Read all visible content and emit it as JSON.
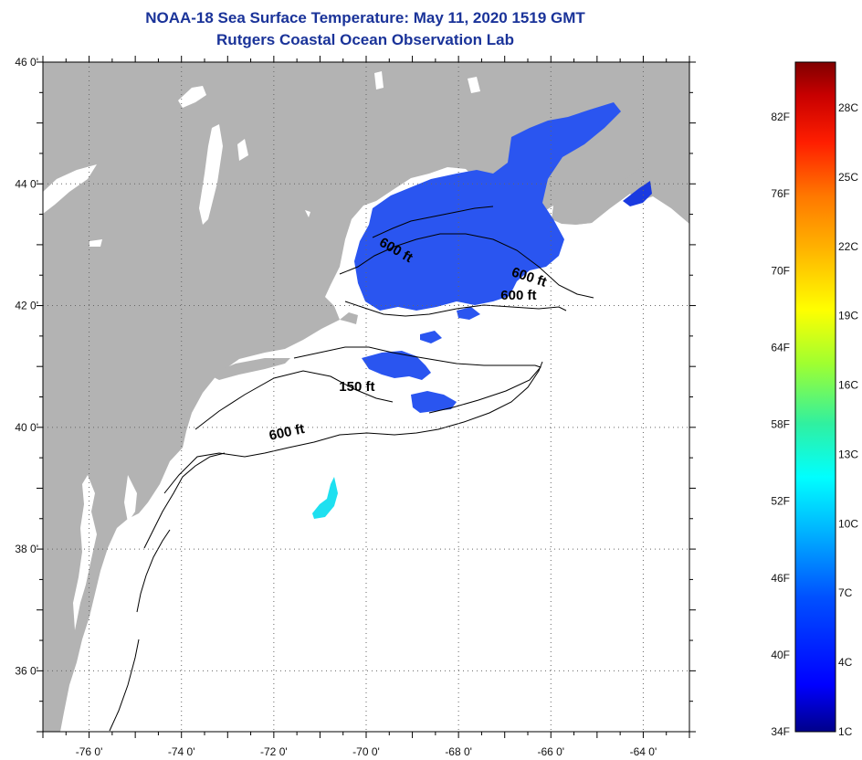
{
  "title": {
    "line1": "NOAA-18 Sea Surface Temperature:  May 11, 2020 1519 GMT",
    "line2": "Rutgers Coastal Ocean Observation Lab"
  },
  "map": {
    "lon_range": [
      -77,
      -63
    ],
    "lat_range": [
      35,
      46
    ],
    "lon_labels": [
      {
        "lon": -76,
        "text": "-76 0'"
      },
      {
        "lon": -74,
        "text": "-74 0'"
      },
      {
        "lon": -72,
        "text": "-72 0'"
      },
      {
        "lon": -70,
        "text": "-70 0'"
      },
      {
        "lon": -68,
        "text": "-68 0'"
      },
      {
        "lon": -66,
        "text": "-66 0'"
      },
      {
        "lon": -64,
        "text": "-64 0'"
      }
    ],
    "lat_labels": [
      {
        "lat": 46,
        "text": "46 0'"
      },
      {
        "lat": 44,
        "text": "44 0'"
      },
      {
        "lat": 42,
        "text": "42 0'"
      },
      {
        "lat": 40,
        "text": "40 0'"
      },
      {
        "lat": 38,
        "text": "38 0'"
      },
      {
        "lat": 36,
        "text": "36 0'"
      }
    ],
    "contour_labels": [
      {
        "text": "600 ft",
        "lon": -69.4,
        "lat": 42.85,
        "rotate": 30
      },
      {
        "text": "600 ft",
        "lon": -66.5,
        "lat": 42.4,
        "rotate": 18
      },
      {
        "text": "600 ft",
        "lon": -66.7,
        "lat": 42.1,
        "rotate": 0
      },
      {
        "text": "150 ft",
        "lon": -70.2,
        "lat": 40.6,
        "rotate": 0
      },
      {
        "text": "600 ft",
        "lon": -71.7,
        "lat": 39.85,
        "rotate": -12
      }
    ],
    "colors": {
      "land": "#b3b3b3",
      "ocean_nodata": "#ffffff",
      "sst_cold": "#2a55f0",
      "sst_deep": "#1a3ae0",
      "sst_warm_patch": "#1ee0f0",
      "grid": "#555555"
    }
  },
  "colorbar": {
    "fahrenheit_labels": [
      "82F",
      "76F",
      "70F",
      "64F",
      "58F",
      "52F",
      "46F",
      "40F",
      "34F"
    ],
    "celsius_labels": [
      "28C",
      "25C",
      "22C",
      "19C",
      "16C",
      "13C",
      "10C",
      "7C",
      "4C",
      "1C"
    ]
  }
}
